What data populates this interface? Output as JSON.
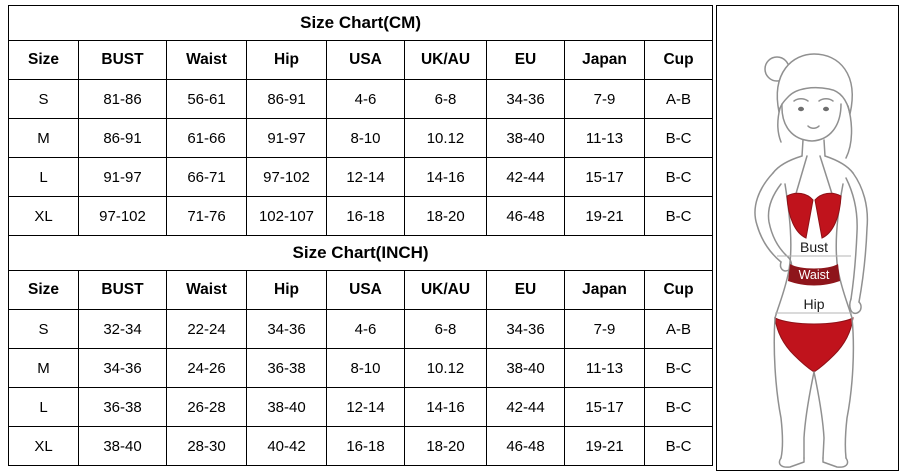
{
  "page": {
    "background": "#ffffff",
    "border_color": "#000000"
  },
  "figure": {
    "labels": {
      "bust": "Bust",
      "waist": "Waist",
      "hip": "Hip"
    },
    "swimsuit_color": "#c0131c",
    "waistband_color": "#8e151b"
  },
  "chart_data": [
    {
      "type": "table",
      "title": "Size Chart(CM)",
      "columns": [
        "Size",
        "BUST",
        "Waist",
        "Hip",
        "USA",
        "UK/AU",
        "EU",
        "Japan",
        "Cup"
      ],
      "rows": [
        [
          "S",
          "81-86",
          "56-61",
          "86-91",
          "4-6",
          "6-8",
          "34-36",
          "7-9",
          "A-B"
        ],
        [
          "M",
          "86-91",
          "61-66",
          "91-97",
          "8-10",
          "10.12",
          "38-40",
          "11-13",
          "B-C"
        ],
        [
          "L",
          "91-97",
          "66-71",
          "97-102",
          "12-14",
          "14-16",
          "42-44",
          "15-17",
          "B-C"
        ],
        [
          "XL",
          "97-102",
          "71-76",
          "102-107",
          "16-18",
          "18-20",
          "46-48",
          "19-21",
          "B-C"
        ]
      ]
    },
    {
      "type": "table",
      "title": "Size Chart(INCH)",
      "columns": [
        "Size",
        "BUST",
        "Waist",
        "Hip",
        "USA",
        "UK/AU",
        "EU",
        "Japan",
        "Cup"
      ],
      "rows": [
        [
          "S",
          "32-34",
          "22-24",
          "34-36",
          "4-6",
          "6-8",
          "34-36",
          "7-9",
          "A-B"
        ],
        [
          "M",
          "34-36",
          "24-26",
          "36-38",
          "8-10",
          "10.12",
          "38-40",
          "11-13",
          "B-C"
        ],
        [
          "L",
          "36-38",
          "26-28",
          "38-40",
          "12-14",
          "14-16",
          "42-44",
          "15-17",
          "B-C"
        ],
        [
          "XL",
          "38-40",
          "28-30",
          "40-42",
          "16-18",
          "18-20",
          "46-48",
          "19-21",
          "B-C"
        ]
      ]
    }
  ]
}
